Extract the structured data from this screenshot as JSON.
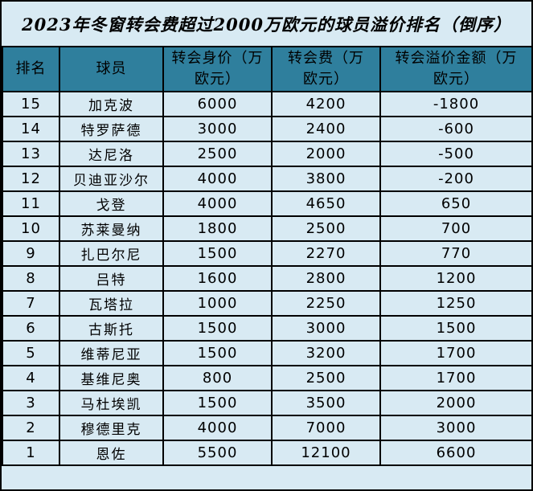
{
  "title": "2023年冬窗转会费超过2000万欧元的球员溢价排名（倒序）",
  "colors": {
    "header_bg": "#2f7f9d",
    "body_bg": "#d8eaf3",
    "border": "#000000",
    "text": "#000000"
  },
  "table": {
    "columns": [
      {
        "key": "rank",
        "label": "排名"
      },
      {
        "key": "player",
        "label": "球员"
      },
      {
        "key": "value",
        "label": "转会身价（万\n欧元）"
      },
      {
        "key": "fee",
        "label": "转会费（万\n欧元）"
      },
      {
        "key": "premium",
        "label": "转会溢价金额（万\n欧元）"
      }
    ],
    "rows": [
      {
        "rank": "15",
        "player": "加克波",
        "value": "6000",
        "fee": "4200",
        "premium": "-1800"
      },
      {
        "rank": "14",
        "player": "特罗萨德",
        "value": "3000",
        "fee": "2400",
        "premium": "-600"
      },
      {
        "rank": "13",
        "player": "达尼洛",
        "value": "2500",
        "fee": "2000",
        "premium": "-500"
      },
      {
        "rank": "12",
        "player": "贝迪亚沙尔",
        "value": "4000",
        "fee": "3800",
        "premium": "-200"
      },
      {
        "rank": "11",
        "player": "戈登",
        "value": "4000",
        "fee": "4650",
        "premium": "650"
      },
      {
        "rank": "10",
        "player": "苏莱曼纳",
        "value": "1800",
        "fee": "2500",
        "premium": "700"
      },
      {
        "rank": "9",
        "player": "扎巴尔尼",
        "value": "1500",
        "fee": "2270",
        "premium": "770"
      },
      {
        "rank": "8",
        "player": "吕特",
        "value": "1600",
        "fee": "2800",
        "premium": "1200"
      },
      {
        "rank": "7",
        "player": "瓦塔拉",
        "value": "1000",
        "fee": "2250",
        "premium": "1250"
      },
      {
        "rank": "6",
        "player": "古斯托",
        "value": "1500",
        "fee": "3000",
        "premium": "1500"
      },
      {
        "rank": "5",
        "player": "维蒂尼亚",
        "value": "1500",
        "fee": "3200",
        "premium": "1700"
      },
      {
        "rank": "4",
        "player": "基维尼奥",
        "value": "800",
        "fee": "2500",
        "premium": "1700"
      },
      {
        "rank": "3",
        "player": "马杜埃凯",
        "value": "1500",
        "fee": "3500",
        "premium": "2000"
      },
      {
        "rank": "2",
        "player": "穆德里克",
        "value": "4000",
        "fee": "7000",
        "premium": "3000"
      },
      {
        "rank": "1",
        "player": "恩佐",
        "value": "5500",
        "fee": "12100",
        "premium": "6600"
      }
    ]
  },
  "chart_data": {
    "type": "table",
    "title": "2023年冬窗转会费超过2000万欧元的球员溢价排名（倒序）",
    "columns": [
      "排名",
      "球员",
      "转会身价（万欧元）",
      "转会费（万欧元）",
      "转会溢价金额（万欧元）"
    ],
    "rows": [
      [
        15,
        "加克波",
        6000,
        4200,
        -1800
      ],
      [
        14,
        "特罗萨德",
        3000,
        2400,
        -600
      ],
      [
        13,
        "达尼洛",
        2500,
        2000,
        -500
      ],
      [
        12,
        "贝迪亚沙尔",
        4000,
        3800,
        -200
      ],
      [
        11,
        "戈登",
        4000,
        4650,
        650
      ],
      [
        10,
        "苏莱曼纳",
        1800,
        2500,
        700
      ],
      [
        9,
        "扎巴尔尼",
        1500,
        2270,
        770
      ],
      [
        8,
        "吕特",
        1600,
        2800,
        1200
      ],
      [
        7,
        "瓦塔拉",
        1000,
        2250,
        1250
      ],
      [
        6,
        "古斯托",
        1500,
        3000,
        1500
      ],
      [
        5,
        "维蒂尼亚",
        1500,
        3200,
        1700
      ],
      [
        4,
        "基维尼奥",
        800,
        2500,
        1700
      ],
      [
        3,
        "马杜埃凯",
        1500,
        3500,
        2000
      ],
      [
        2,
        "穆德里克",
        4000,
        7000,
        3000
      ],
      [
        1,
        "恩佐",
        5500,
        12100,
        6600
      ]
    ]
  }
}
